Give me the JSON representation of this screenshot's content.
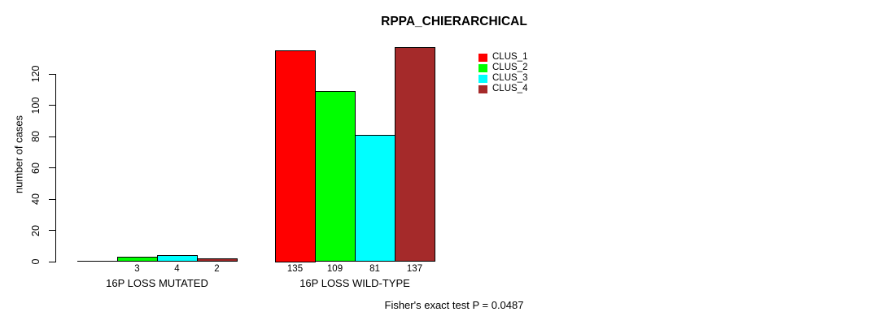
{
  "figure": {
    "title": "RPPA_CHIERARCHICAL",
    "annotation": "Fisher's exact test P = 0.0487"
  },
  "chart_data": {
    "type": "bar",
    "title": "RPPA_CHIERARCHICAL",
    "xlabel": "",
    "ylabel": "number of cases",
    "categories": [
      "16P LOSS MUTATED",
      "16P LOSS WILD-TYPE"
    ],
    "series": [
      {
        "name": "CLUS_1",
        "color": "#ff0000",
        "values": [
          0,
          135
        ]
      },
      {
        "name": "CLUS_2",
        "color": "#00ff00",
        "values": [
          3,
          109
        ]
      },
      {
        "name": "CLUS_3",
        "color": "#00ffff",
        "values": [
          4,
          81
        ]
      },
      {
        "name": "CLUS_4",
        "color": "#a52a2a",
        "values": [
          2,
          137
        ]
      }
    ],
    "y_ticks": [
      0,
      20,
      40,
      60,
      80,
      100,
      120
    ],
    "ylim": [
      0,
      140
    ],
    "grid": false,
    "bar_value_labels_visible": true,
    "zero_value_labels_hidden": true,
    "legend": {
      "position": "top-right",
      "entries": [
        "CLUS_1",
        "CLUS_2",
        "CLUS_3",
        "CLUS_4"
      ]
    },
    "annotation": "Fisher's exact test P = 0.0487"
  }
}
